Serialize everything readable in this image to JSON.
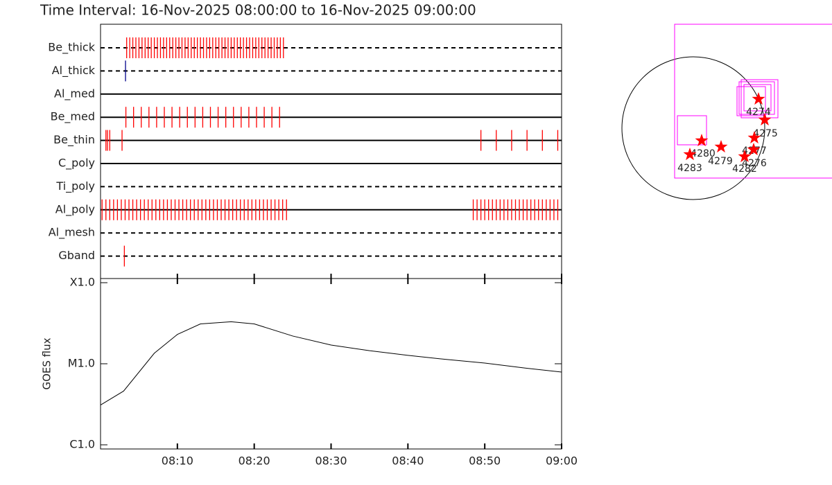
{
  "title": "Time Interval: 16-Nov-2025 08:00:00 to 16-Nov-2025 09:00:00",
  "chart_data": [
    {
      "type": "timeline",
      "xlim": [
        0,
        60
      ],
      "rows": [
        {
          "name": "Be_thick",
          "line": "dashed",
          "color": "#ff0000",
          "x": [
            3.4,
            3.8,
            4.2,
            4.6,
            5,
            5.4,
            5.8,
            6.2,
            6.6,
            7,
            7.4,
            7.8,
            8.2,
            8.6,
            9,
            9.4,
            9.8,
            10.2,
            10.6,
            11,
            11.4,
            11.8,
            12.2,
            12.6,
            13,
            13.4,
            13.8,
            14.2,
            14.6,
            15,
            15.4,
            15.8,
            16.2,
            16.6,
            17,
            17.4,
            17.8,
            18.2,
            18.6,
            19,
            19.4,
            19.8,
            20.2,
            20.6,
            21,
            21.4,
            21.8,
            22.2,
            22.6,
            23,
            23.4,
            23.8
          ]
        },
        {
          "name": "Al_thick",
          "line": "dashed",
          "color": "#00008b",
          "x": [
            3.25
          ]
        },
        {
          "name": "Al_med",
          "line": "solid",
          "color": "#ff0000",
          "x": []
        },
        {
          "name": "Be_med",
          "line": "solid",
          "color": "#ff0000",
          "x": [
            3.3,
            4.3,
            5.3,
            6.3,
            7.3,
            8.3,
            9.3,
            10.3,
            11.3,
            12.3,
            13.3,
            14.3,
            15.3,
            16.3,
            17.3,
            18.3,
            19.3,
            20.3,
            21.3,
            22.3,
            23.3
          ]
        },
        {
          "name": "Be_thin",
          "line": "solid",
          "color": "#ff0000",
          "x": [
            0.7,
            0.9,
            1.2,
            2.8,
            49.5,
            51.5,
            53.5,
            55.5,
            57.5,
            59.5
          ]
        },
        {
          "name": "C_poly",
          "line": "solid",
          "color": "#ff0000",
          "x": []
        },
        {
          "name": "Ti_poly",
          "line": "dashed",
          "color": "#ff0000",
          "x": []
        },
        {
          "name": "Al_poly",
          "line": "solid",
          "color": "#ff0000",
          "x": [
            0.2,
            0.7,
            1.2,
            1.7,
            2.2,
            2.7,
            3.2,
            3.7,
            4.2,
            4.7,
            5.2,
            5.7,
            6.2,
            6.7,
            7.2,
            7.7,
            8.2,
            8.7,
            9.2,
            9.7,
            10.2,
            10.7,
            11.2,
            11.7,
            12.2,
            12.7,
            13.2,
            13.7,
            14.2,
            14.7,
            15.2,
            15.7,
            16.2,
            16.7,
            17.2,
            17.7,
            18.2,
            18.7,
            19.2,
            19.7,
            20.2,
            20.7,
            21.2,
            21.7,
            22.2,
            22.7,
            23.2,
            23.7,
            24.2,
            48.5,
            49,
            49.5,
            50,
            50.5,
            51,
            51.5,
            52,
            52.5,
            53,
            53.5,
            54,
            54.5,
            55,
            55.5,
            56,
            56.5,
            57,
            57.5,
            58,
            58.5,
            59,
            59.5
          ]
        },
        {
          "name": "Al_mesh",
          "line": "dashed",
          "color": "#ff0000",
          "x": []
        },
        {
          "name": "Gband",
          "line": "dashed",
          "color": "#ff0000",
          "x": [
            3.1
          ]
        }
      ]
    },
    {
      "type": "line",
      "ylabel": "GOES flux",
      "color": "#000000",
      "log": true,
      "x": [
        0,
        3,
        7,
        10,
        13,
        17,
        20,
        25,
        30,
        35,
        40,
        45,
        50,
        55,
        60
      ],
      "values": [
        3.1e-06,
        4.6e-06,
        1.35e-05,
        2.3e-05,
        3.1e-05,
        3.3e-05,
        3.1e-05,
        2.2e-05,
        1.7e-05,
        1.45e-05,
        1.27e-05,
        1.13e-05,
        1.02e-05,
        8.9e-06,
        7.9e-06
      ],
      "xlim": [
        0,
        60
      ],
      "xticks": [
        {
          "value": 10,
          "label": "08:10"
        },
        {
          "value": 20,
          "label": "08:20"
        },
        {
          "value": 30,
          "label": "08:30"
        },
        {
          "value": 40,
          "label": "08:40"
        },
        {
          "value": 50,
          "label": "08:50"
        },
        {
          "value": 60,
          "label": "09:00"
        }
      ],
      "ylim": [
        1e-06,
        0.0001
      ],
      "yticks": [
        {
          "value": 1e-06,
          "label": "C1.0"
        },
        {
          "value": 1e-05,
          "label": "M1.0"
        },
        {
          "value": 0.0001,
          "label": "X1.0"
        }
      ]
    },
    {
      "type": "map",
      "color": "#ff0000",
      "labels": [
        "4274",
        "4275",
        "4277",
        "4280",
        "4279",
        "4276",
        "4282",
        "4283"
      ]
    }
  ]
}
